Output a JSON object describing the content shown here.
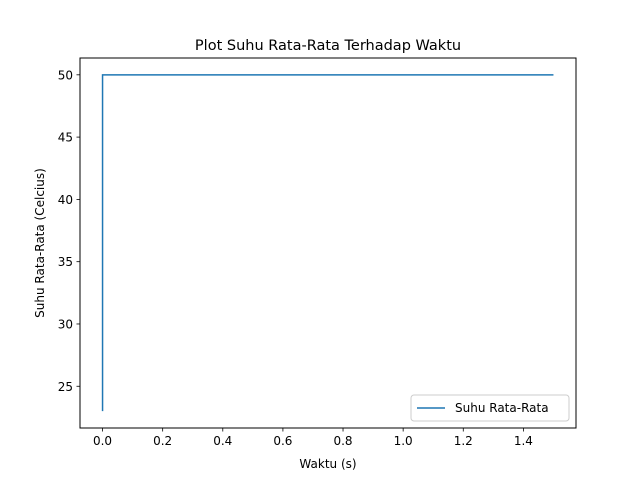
{
  "chart_data": {
    "type": "line",
    "title": "Plot Suhu Rata-Rata Terhadap Waktu",
    "xlabel": "Waktu (s)",
    "ylabel": "Suhu Rata-Rata (Celcius)",
    "xlim": [
      -0.075,
      1.575
    ],
    "ylim": [
      21.65,
      51.35
    ],
    "xticks": [
      0.0,
      0.2,
      0.4,
      0.6,
      0.8,
      1.0,
      1.2,
      1.4
    ],
    "xtick_labels": [
      "0.0",
      "0.2",
      "0.4",
      "0.6",
      "0.8",
      "1.0",
      "1.2",
      "1.4"
    ],
    "yticks": [
      25,
      30,
      35,
      40,
      45,
      50
    ],
    "ytick_labels": [
      "25",
      "30",
      "35",
      "40",
      "45",
      "50"
    ],
    "grid": false,
    "legend_position": "lower-right",
    "series": [
      {
        "name": "Suhu Rata-Rata",
        "color": "#1f77b4",
        "x": [
          0.0,
          0.0,
          0.01,
          1.5
        ],
        "y": [
          23.0,
          50.0,
          50.0,
          50.0
        ]
      }
    ]
  }
}
